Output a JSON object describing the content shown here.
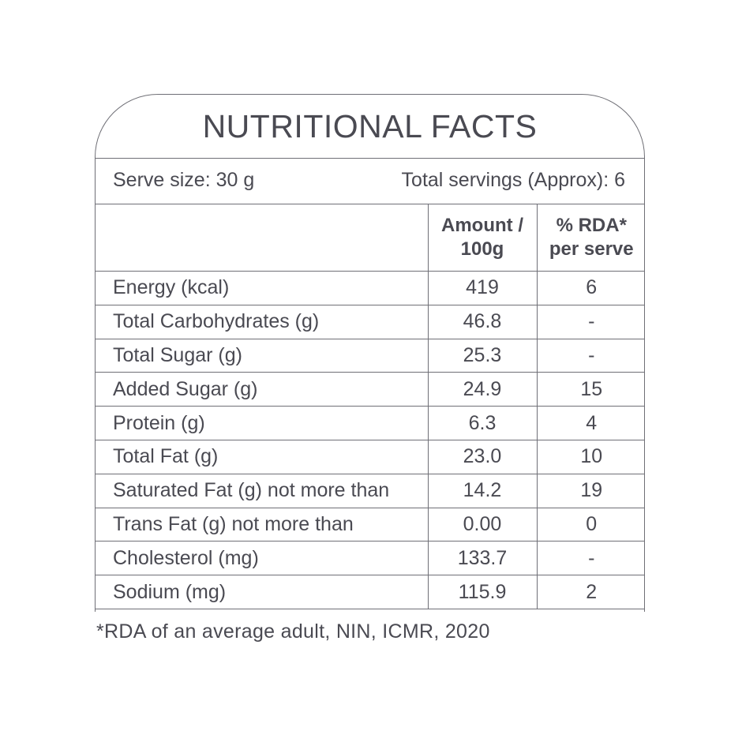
{
  "title": "NUTRITIONAL FACTS",
  "serve_size": "Serve size: 30 g",
  "total_servings": "Total servings (Approx): 6",
  "headers": {
    "nutrient": "",
    "amount_line1": "Amount /",
    "amount_line2": "100g",
    "rda_line1": "% RDA*",
    "rda_line2": "per serve"
  },
  "rows": [
    {
      "nutrient": "Energy (kcal)",
      "amount": "419",
      "rda": "6"
    },
    {
      "nutrient": "Total Carbohydrates (g)",
      "amount": "46.8",
      "rda": "-"
    },
    {
      "nutrient": "Total Sugar (g)",
      "amount": "25.3",
      "rda": "-"
    },
    {
      "nutrient": "Added Sugar (g)",
      "amount": "24.9",
      "rda": "15"
    },
    {
      "nutrient": "Protein (g)",
      "amount": "6.3",
      "rda": "4"
    },
    {
      "nutrient": "Total Fat (g)",
      "amount": "23.0",
      "rda": "10"
    },
    {
      "nutrient": "Saturated Fat (g) not more than",
      "amount": "14.2",
      "rda": "19"
    },
    {
      "nutrient": "Trans Fat (g) not more than",
      "amount": "0.00",
      "rda": "0"
    },
    {
      "nutrient": "Cholesterol (mg)",
      "amount": "133.7",
      "rda": "-"
    },
    {
      "nutrient": "Sodium (mg)",
      "amount": "115.9",
      "rda": "2"
    }
  ],
  "footnote": "*RDA of an average adult, NIN, ICMR, 2020",
  "colors": {
    "text": "#4a4a52",
    "border": "#6f6f76",
    "background": "#ffffff"
  }
}
